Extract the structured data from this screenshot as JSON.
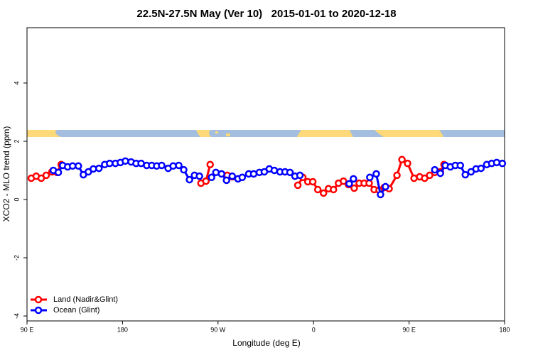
{
  "chart_data": {
    "type": "line",
    "title": "22.5N-27.5N May (Ver 10)   2015-01-01 to 2020-12-18",
    "xlabel": "Longitude (deg E)",
    "ylabel": "XCO2 - MLO trend (ppm)",
    "xlim": [
      90,
      540
    ],
    "ylim": [
      -4.17,
      5.9
    ],
    "xticks": [
      {
        "value": 90,
        "label": "90 E"
      },
      180,
      {
        "value": 270,
        "label": "90 W"
      },
      {
        "value": 360,
        "label": "0"
      },
      {
        "value": 450,
        "label": "90 E"
      },
      {
        "value": 540,
        "label": "180"
      }
    ],
    "yticks": [
      -4,
      -2,
      0,
      2,
      4
    ],
    "legend": "bottomleft",
    "series": [
      {
        "name": "Land (Nadir&Glint)",
        "color": "#ff0000",
        "x": [
          94.0,
          98.7,
          103.4,
          108.1,
          113.5,
          118.2,
          122.2,
          188,
          253.9,
          258.6,
          262.6,
          270,
          278.7,
          283.4,
          315,
          345.2,
          349.9,
          354.6,
          359.3,
          364.0,
          369.4,
          374.1,
          378.8,
          383.5,
          388.2,
          392.9,
          398.3,
          403.0,
          407.7,
          412.4,
          417.1,
          421.8,
          426.5,
          431.2,
          438.6,
          443.3,
          448.6,
          454.7,
          460.0,
          464.7,
          469.4,
          474.2,
          479.5,
          482.9
        ],
        "values": [
          0.73,
          0.8,
          0.73,
          0.83,
          0.95,
          0.93,
          1.2,
          null,
          0.56,
          0.63,
          1.2,
          null,
          0.83,
          0.78,
          null,
          0.49,
          0.76,
          0.61,
          0.61,
          0.34,
          0.22,
          0.37,
          0.34,
          0.56,
          0.63,
          0.51,
          0.39,
          0.56,
          0.56,
          0.56,
          0.34,
          0.32,
          0.41,
          0.37,
          0.83,
          1.37,
          1.24,
          0.73,
          0.78,
          0.73,
          0.83,
          0.93,
          0.95,
          1.2
        ]
      },
      {
        "name": "Ocean (Glint)",
        "color": "#0000ff",
        "x": [
          114.8,
          119.5,
          123.6,
          128.3,
          133.0,
          138.4,
          143.1,
          147.8,
          152.5,
          157.8,
          163.2,
          167.9,
          173.3,
          178.0,
          182.7,
          188.1,
          192.8,
          197.5,
          202.8,
          207.5,
          212.2,
          216.9,
          223.0,
          227.7,
          233.0,
          237.7,
          243.1,
          247.8,
          252.5,
          257,
          263.9,
          268.0,
          273.3,
          278.0,
          283.4,
          288.8,
          292.8,
          298.9,
          303.6,
          309.0,
          313.6,
          318.3,
          323.0,
          328.4,
          333.1,
          337.8,
          342.5,
          347.2,
          370,
          393.6,
          397.6,
          405,
          413.0,
          419.1,
          423.1,
          427.8,
          450,
          474.2,
          479.5,
          484.2,
          488.9,
          493.6,
          498.3,
          503.0,
          508.4,
          513.1,
          517.8,
          523.2,
          527.9,
          532.6,
          537.9
        ],
        "values": [
          1.0,
          0.93,
          1.17,
          1.12,
          1.15,
          1.15,
          0.85,
          0.95,
          1.05,
          1.07,
          1.2,
          1.24,
          1.24,
          1.27,
          1.32,
          1.29,
          1.24,
          1.24,
          1.17,
          1.17,
          1.15,
          1.17,
          1.07,
          1.15,
          1.17,
          1.02,
          0.68,
          0.83,
          0.8,
          null,
          0.76,
          0.93,
          0.88,
          0.66,
          0.8,
          0.71,
          0.76,
          0.88,
          0.88,
          0.93,
          0.95,
          1.05,
          1.0,
          0.95,
          0.95,
          0.93,
          0.8,
          0.83,
          null,
          0.54,
          0.71,
          null,
          0.76,
          0.88,
          0.17,
          0.44,
          null,
          1.02,
          0.9,
          1.17,
          1.12,
          1.17,
          1.17,
          0.85,
          0.95,
          1.05,
          1.07,
          1.2,
          1.24,
          1.27,
          1.24
        ]
      }
    ]
  }
}
